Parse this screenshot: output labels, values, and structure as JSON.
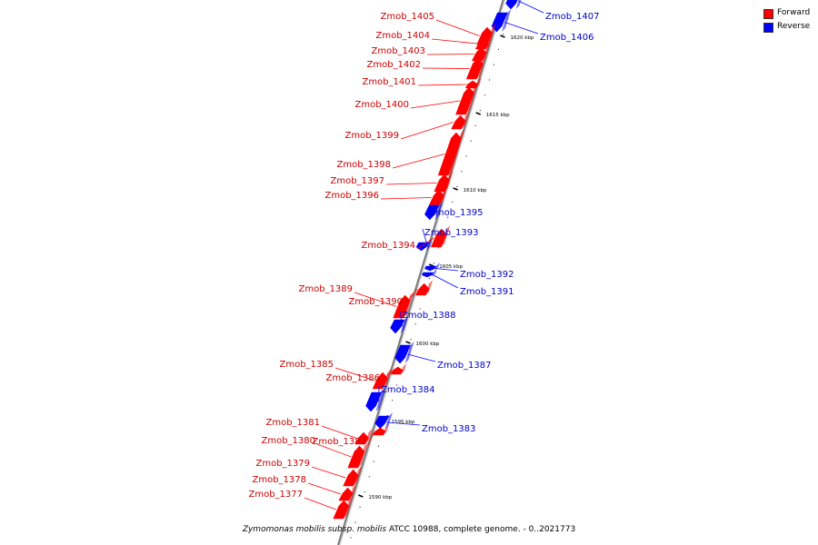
{
  "colors": {
    "forward": "#ff0000",
    "reverse": "#0000ff",
    "forward_text": "#cc0000",
    "reverse_text": "#0000cc"
  },
  "legend": {
    "forward_label": "Forward",
    "reverse_label": "Reverse"
  },
  "footer": {
    "species": "Zymomonas mobilis subsp. mobilis",
    "rest": "ATCC 10988, complete genome. - 0..2021773"
  },
  "scale_unit": "kbp",
  "kbp_ticks": [
    1590,
    1595,
    1600,
    1605,
    1610,
    1615,
    1620
  ],
  "genes": [
    {
      "name": "Zmob_1407",
      "strand": "reverse"
    },
    {
      "name": "Zmob_1406",
      "strand": "reverse"
    },
    {
      "name": "Zmob_1405",
      "strand": "forward"
    },
    {
      "name": "Zmob_1404",
      "strand": "forward"
    },
    {
      "name": "Zmob_1403",
      "strand": "forward"
    },
    {
      "name": "Zmob_1402",
      "strand": "forward"
    },
    {
      "name": "Zmob_1401",
      "strand": "forward"
    },
    {
      "name": "Zmob_1400",
      "strand": "forward"
    },
    {
      "name": "Zmob_1399",
      "strand": "forward"
    },
    {
      "name": "Zmob_1398",
      "strand": "forward"
    },
    {
      "name": "Zmob_1397",
      "strand": "forward"
    },
    {
      "name": "Zmob_1396",
      "strand": "forward"
    },
    {
      "name": "Zmob_1395",
      "strand": "reverse"
    },
    {
      "name": "Zmob_1394",
      "strand": "forward"
    },
    {
      "name": "Zmob_1393",
      "strand": "reverse"
    },
    {
      "name": "Zmob_1392",
      "strand": "reverse"
    },
    {
      "name": "Zmob_1391",
      "strand": "reverse"
    },
    {
      "name": "Zmob_1390",
      "strand": "forward"
    },
    {
      "name": "Zmob_1389",
      "strand": "forward"
    },
    {
      "name": "Zmob_1388",
      "strand": "reverse"
    },
    {
      "name": "Zmob_1387",
      "strand": "reverse"
    },
    {
      "name": "Zmob_1386",
      "strand": "forward"
    },
    {
      "name": "Zmob_1385",
      "strand": "forward"
    },
    {
      "name": "Zmob_1384",
      "strand": "reverse"
    },
    {
      "name": "Zmob_1383",
      "strand": "reverse"
    },
    {
      "name": "Zmob_1382",
      "strand": "forward"
    },
    {
      "name": "Zmob_1381",
      "strand": "forward"
    },
    {
      "name": "Zmob_1380",
      "strand": "forward"
    },
    {
      "name": "Zmob_1379",
      "strand": "forward"
    },
    {
      "name": "Zmob_1378",
      "strand": "forward"
    },
    {
      "name": "Zmob_1377",
      "strand": "forward"
    }
  ]
}
